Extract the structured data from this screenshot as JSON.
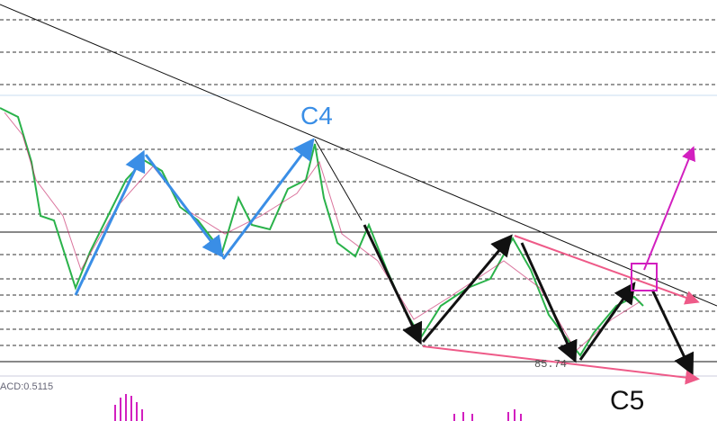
{
  "labels": {
    "wave_c4": "C4",
    "wave_c5": "C5",
    "price": "85.74",
    "indicator": "ACD:0.5115"
  }
}
